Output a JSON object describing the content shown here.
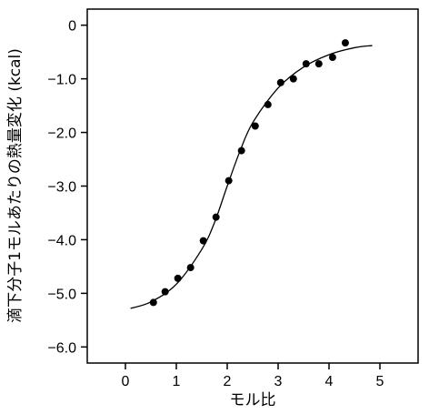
{
  "chart_data": {
    "type": "scatter",
    "title": "",
    "xlabel": "モル比",
    "ylabel": "滴下分子1モルあたりの熱量変化 (kcal)",
    "xlim": [
      -0.75,
      5.75
    ],
    "ylim": [
      -6.3,
      0.3
    ],
    "x_ticks": [
      0,
      1,
      2,
      3,
      4,
      5
    ],
    "x_tick_labels": [
      "0",
      "1",
      "2",
      "3",
      "4",
      "5"
    ],
    "y_ticks": [
      0,
      -1,
      -2,
      -3,
      -4,
      -5,
      -6
    ],
    "y_tick_labels": [
      "0",
      "−1.0",
      "−2.0",
      "−3.0",
      "−4.0",
      "−5.0",
      "−6.0"
    ],
    "grid": false,
    "legend": "none",
    "series": [
      {
        "kind": "points",
        "x": [
          0.55,
          0.78,
          1.03,
          1.28,
          1.53,
          1.78,
          2.03,
          2.28,
          2.55,
          2.8,
          3.05,
          3.3,
          3.55,
          3.8,
          4.07,
          4.32
        ],
        "y": [
          -5.17,
          -4.97,
          -4.72,
          -4.52,
          -4.02,
          -3.58,
          -2.9,
          -2.34,
          -1.88,
          -1.48,
          -1.07,
          -1.0,
          -0.72,
          -0.72,
          -0.6,
          -0.33
        ]
      },
      {
        "kind": "fit-curve",
        "x": [
          0.1,
          0.5,
          1.0,
          1.5,
          1.75,
          2.0,
          2.25,
          2.5,
          3.0,
          3.5,
          4.0,
          4.5,
          4.85
        ],
        "y": [
          -5.28,
          -5.16,
          -4.83,
          -4.18,
          -3.68,
          -3.0,
          -2.35,
          -1.82,
          -1.17,
          -0.78,
          -0.55,
          -0.42,
          -0.38
        ]
      }
    ],
    "colors": {
      "marker": "#000000",
      "line": "#000000",
      "frame": "#000000"
    }
  }
}
